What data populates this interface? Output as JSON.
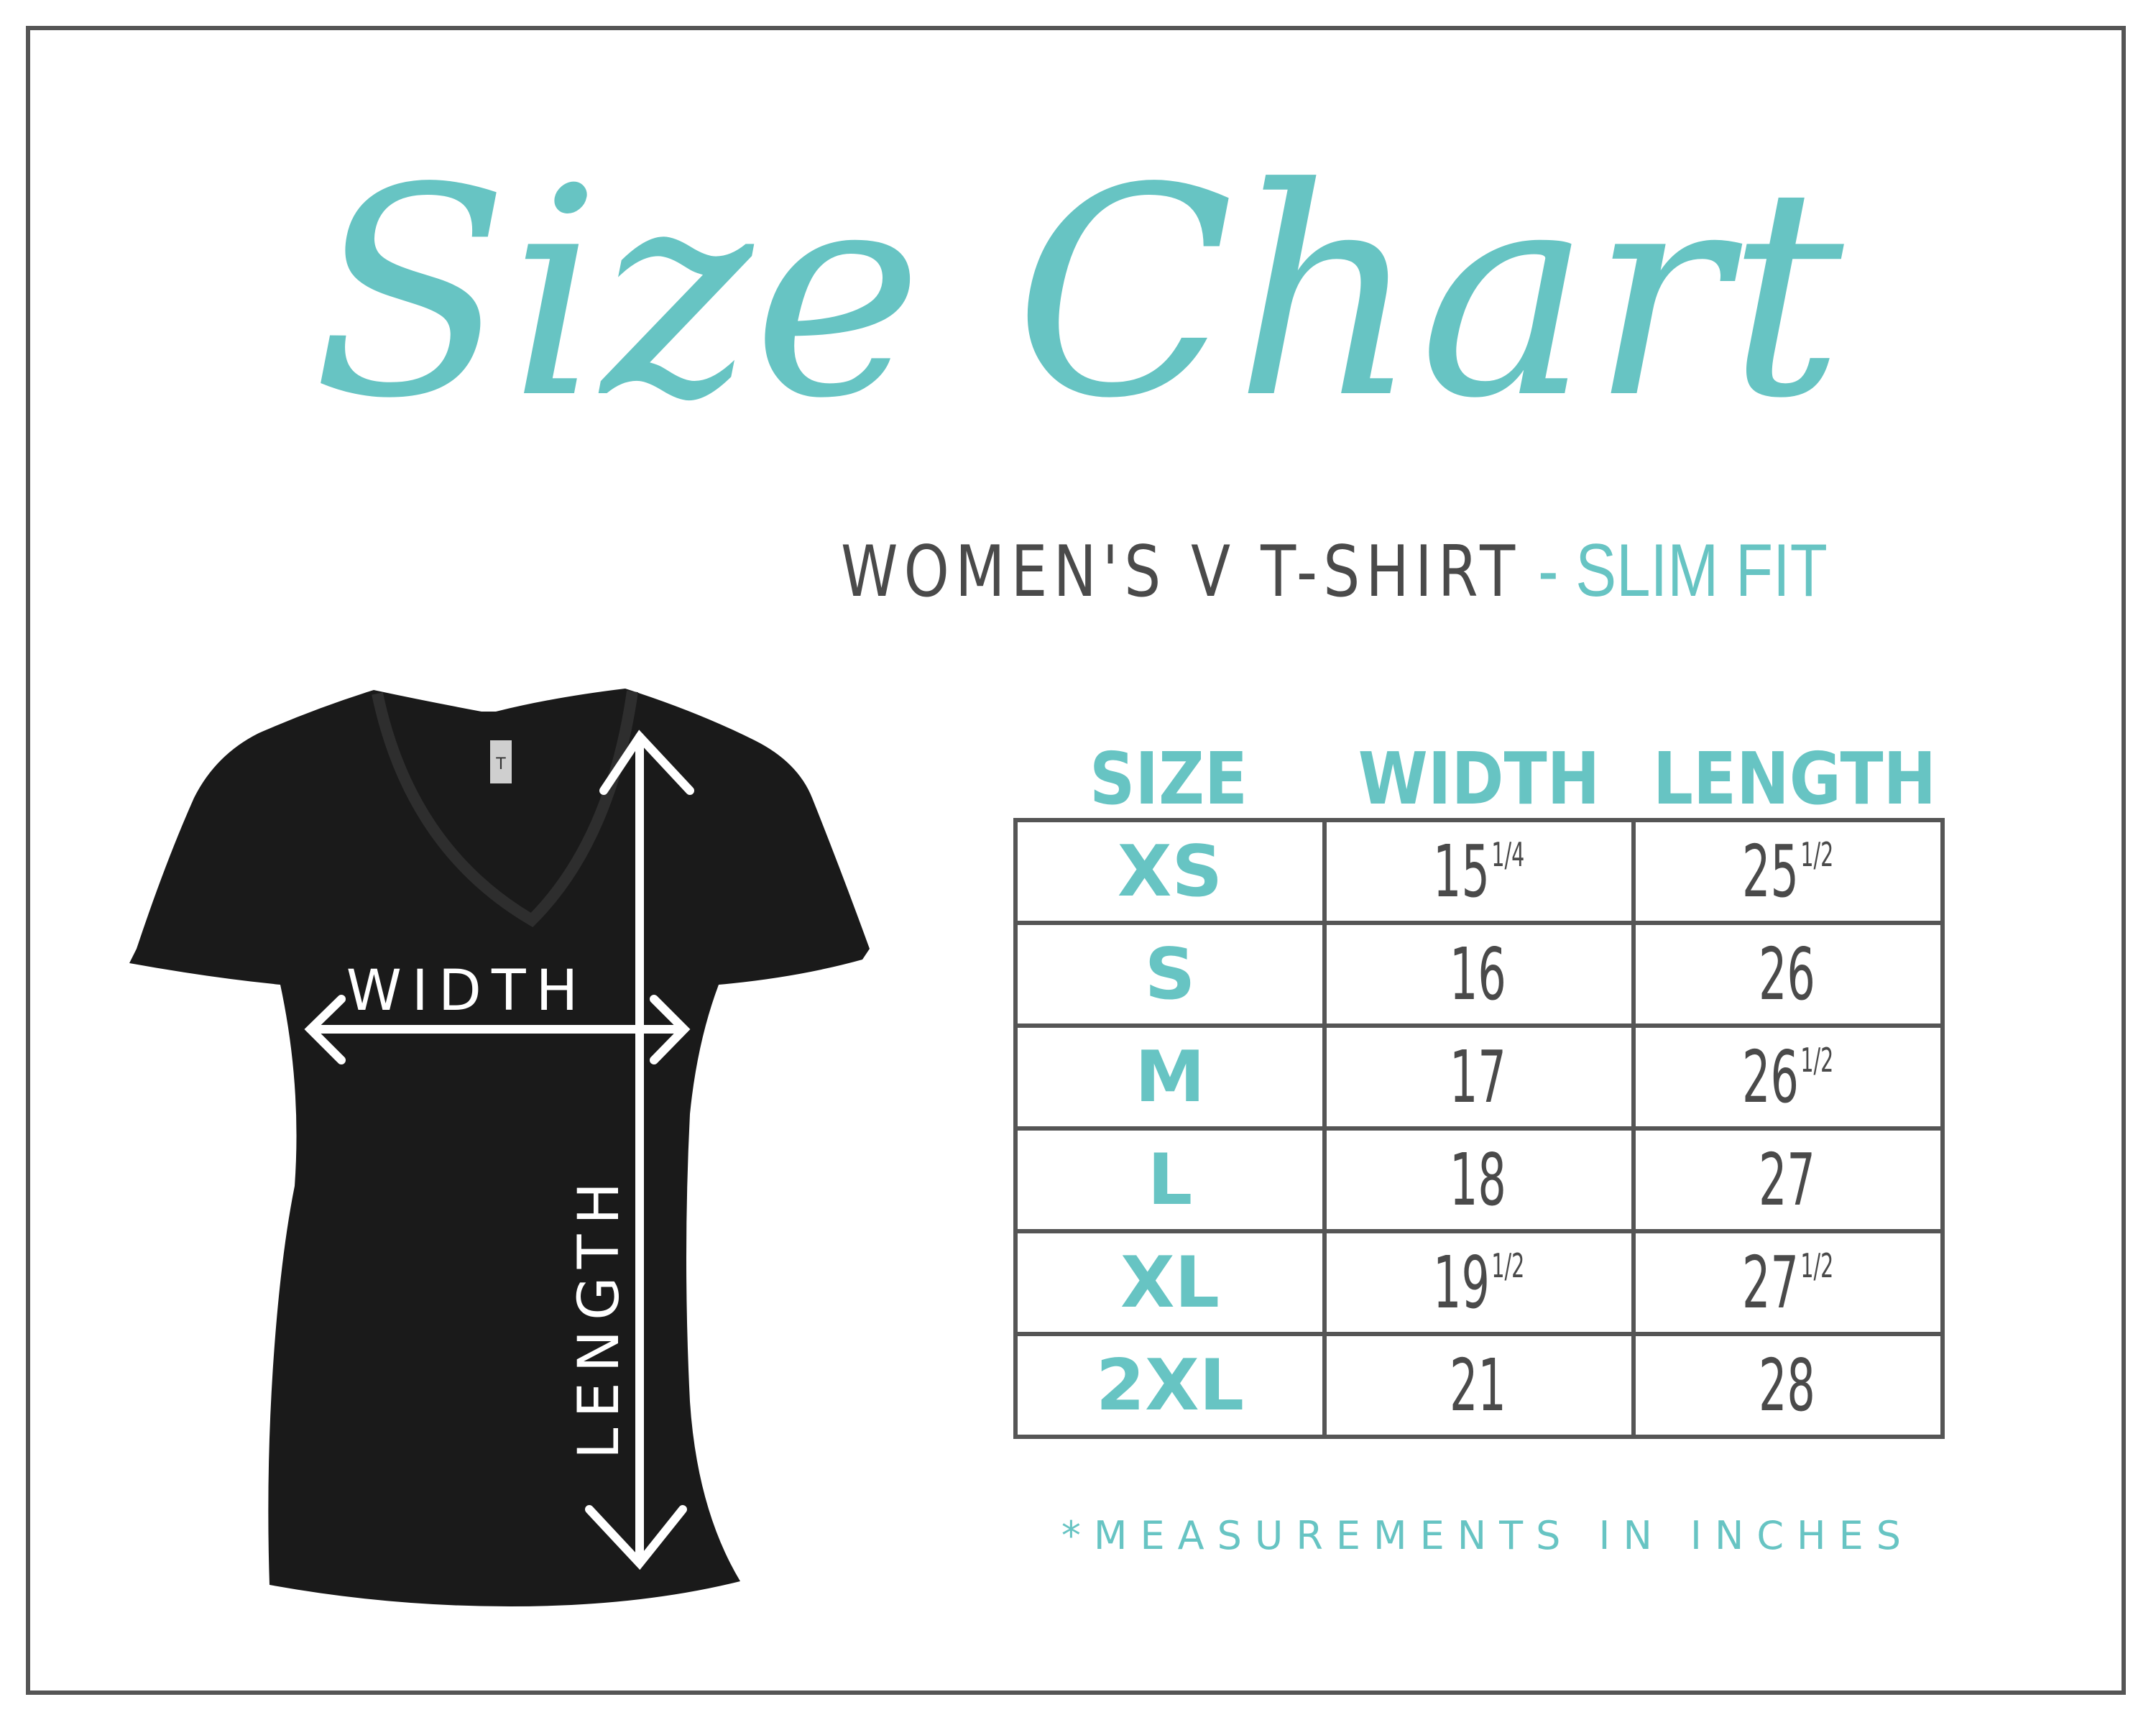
{
  "title": "Size Chart",
  "subtitle": {
    "product": "WOMEN'S V  T-SHIRT",
    "fit": " - SLIM FIT"
  },
  "shirt": {
    "width_label": "WIDTH",
    "length_label": "LENGTH",
    "tag_letter": "T"
  },
  "table": {
    "headers": [
      "SIZE",
      "WIDTH",
      "LENGTH"
    ],
    "rows": [
      {
        "size": "XS",
        "width": "15",
        "width_frac": "1/4",
        "length": "25",
        "length_frac": "1/2"
      },
      {
        "size": "S",
        "width": "16",
        "width_frac": "",
        "length": "26",
        "length_frac": ""
      },
      {
        "size": "M",
        "width": "17",
        "width_frac": "",
        "length": "26",
        "length_frac": "1/2"
      },
      {
        "size": "L",
        "width": "18",
        "width_frac": "",
        "length": "27",
        "length_frac": ""
      },
      {
        "size": "XL",
        "width": "19",
        "width_frac": "1/2",
        "length": "27",
        "length_frac": "1/2"
      },
      {
        "size": "2XL",
        "width": "21",
        "width_frac": "",
        "length": "28",
        "length_frac": ""
      }
    ]
  },
  "note": "*MEASUREMENTS IN INCHES",
  "colors": {
    "accent": "#67c4c3",
    "text": "#4a4a4a",
    "border": "#555555",
    "shirt": "#1a1a1a"
  }
}
